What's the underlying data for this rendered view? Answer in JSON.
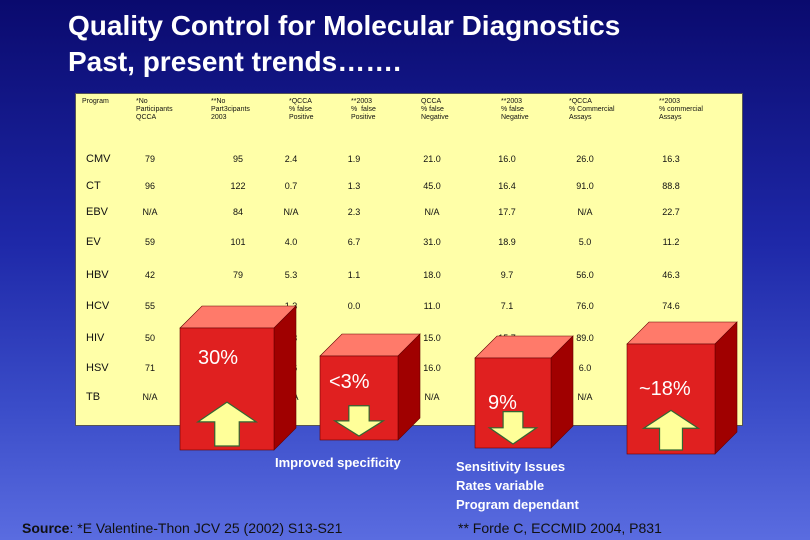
{
  "title": {
    "line1": "Quality Control for Molecular Diagnostics",
    "line2": "Past, present trends……."
  },
  "table": {
    "headers": [
      "Program",
      "*No\nParticipants\nQCCA",
      "**No\nPart3cipants\n2003",
      "*QCCA\n% false\nPositive",
      "**2003\n%  false\nPositive",
      "QCCA\n% false\nNegative",
      "**2003\n% false\nNegative",
      "*QCCA\n% Commercial\nAssays",
      "**2003\n% commercial\nAssays"
    ],
    "rows": [
      {
        "program": "CMV",
        "values": [
          "79",
          "95",
          "2.4",
          "1.9",
          "21.0",
          "16.0",
          "26.0",
          "16.3"
        ]
      },
      {
        "program": "CT",
        "values": [
          "96",
          "122",
          "0.7",
          "1.3",
          "45.0",
          "16.4",
          "91.0",
          "88.8"
        ]
      },
      {
        "program": "EBV",
        "values": [
          "N/A",
          "84",
          "N/A",
          "2.3",
          "N/A",
          "17.7",
          "N/A",
          "22.7"
        ]
      },
      {
        "program": "EV",
        "values": [
          "59",
          "101",
          "4.0",
          "6.7",
          "31.0",
          "18.9",
          "5.0",
          "11.2"
        ]
      },
      {
        "program": "HBV",
        "values": [
          "42",
          "79",
          "5.3",
          "1.1",
          "18.0",
          "9.7",
          "56.0",
          "46.3"
        ]
      },
      {
        "program": "HCV",
        "values": [
          "55",
          "",
          "1.3",
          "0.0",
          "11.0",
          "7.1",
          "76.0",
          "74.6"
        ]
      },
      {
        "program": "HIV",
        "values": [
          "50",
          "",
          "2.3",
          "0.0",
          "15.0",
          "15.7",
          "89.0",
          ""
        ]
      },
      {
        "program": "HSV",
        "values": [
          "71",
          "",
          "4.6",
          "",
          "16.0",
          "",
          "6.0",
          ""
        ]
      },
      {
        "program": "TB",
        "values": [
          "N/A",
          "",
          "N/A",
          "",
          "N/A",
          "",
          "N/A",
          ""
        ]
      }
    ]
  },
  "highlights": [
    {
      "label": "30%",
      "arrow": "up-arrow"
    },
    {
      "label": "<3%",
      "arrow": "down-arrow"
    },
    {
      "label": "9%",
      "arrow": "down-arrow"
    },
    {
      "label": "~18%",
      "arrow": "up-arrow"
    }
  ],
  "notes": {
    "improved": "Improved specificity",
    "sensitivity_1": "Sensitivity Issues",
    "sensitivity_2": "Rates variable",
    "sensitivity_3": "Program dependant",
    "source_label": "Source",
    "source_text": ":  *E Valentine-Thon JCV 25 (2002) S13-S21",
    "forde": "** Forde C, ECCMID 2004, P831"
  },
  "colors": {
    "background_top": "#0a0a6e",
    "background_bottom": "#5a6ce0",
    "table_fill": "#ffffa8",
    "box_front": "#e02020",
    "box_top": "#ff7a6a",
    "box_side": "#a00000",
    "arrow_fill": "#ffff99",
    "arrow_stroke": "#336633"
  }
}
